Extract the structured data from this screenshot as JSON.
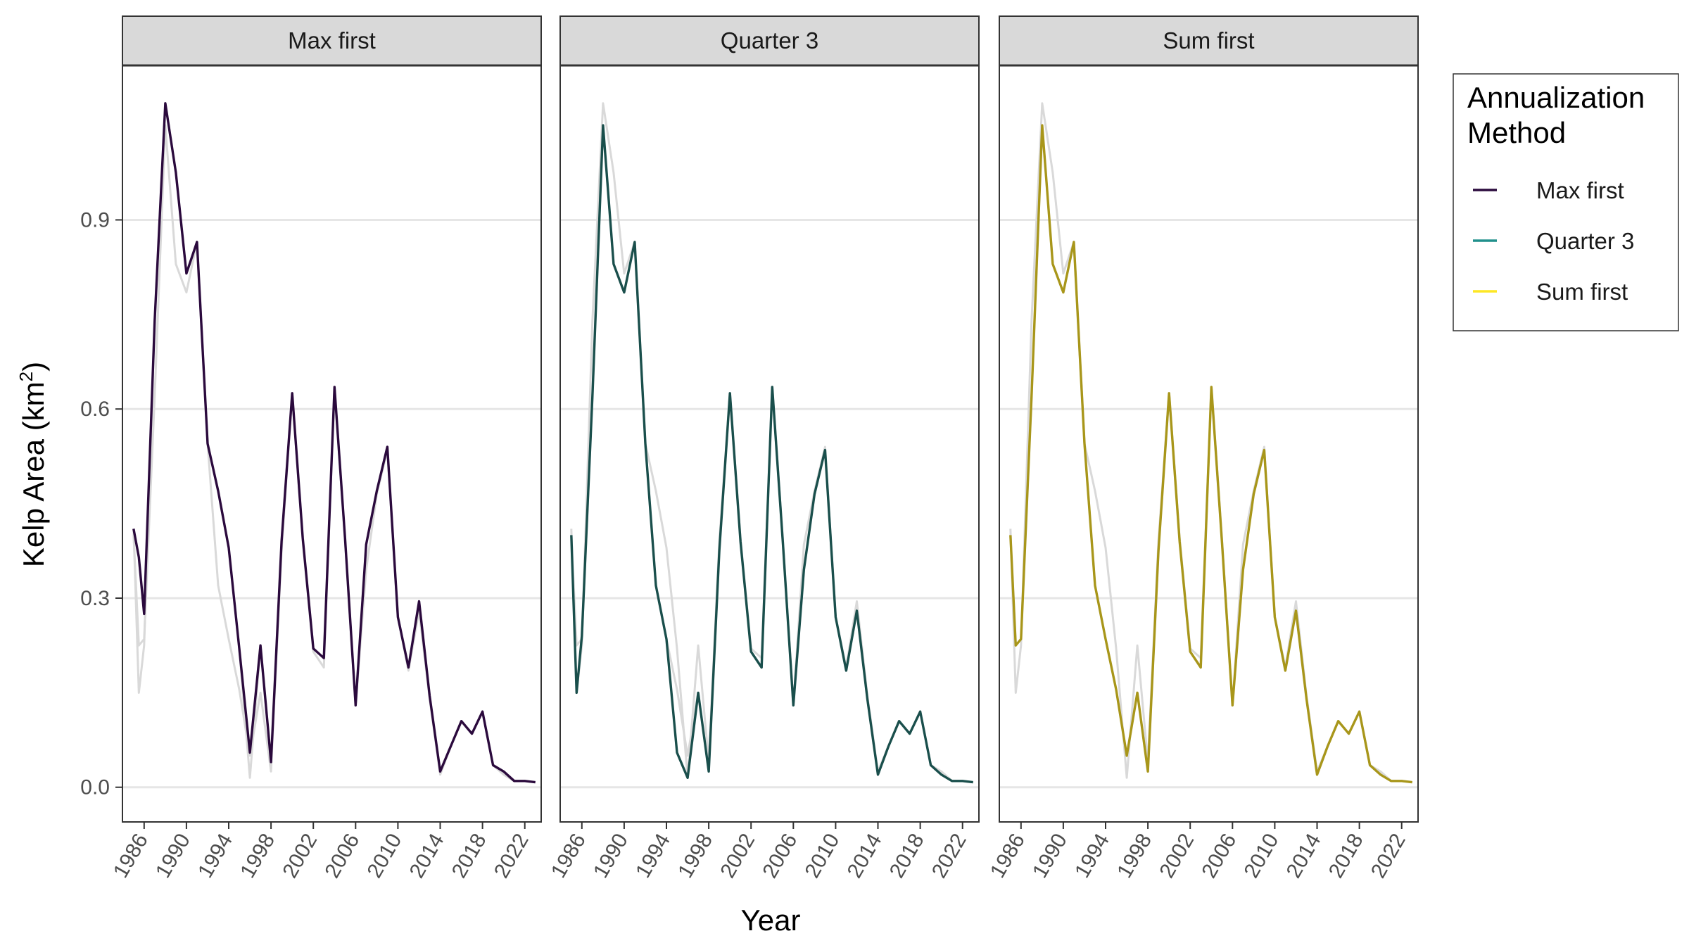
{
  "chart_data": {
    "type": "line",
    "ylabel": "Kelp Area (km",
    "ylabel_sup": "2",
    "ylabel_close": ")",
    "xlabel": "Year",
    "ylim": [
      -0.055,
      1.145
    ],
    "xlim": [
      1983.95,
      2023.55
    ],
    "y_ticks": [
      0.0,
      0.3,
      0.6,
      0.9
    ],
    "y_tick_labels": [
      "0.0",
      "0.3",
      "0.6",
      "0.9"
    ],
    "x_ticks": [
      1986,
      1990,
      1994,
      1998,
      2002,
      2006,
      2010,
      2014,
      2018,
      2022
    ],
    "x_tick_labels": [
      "1986",
      "1990",
      "1994",
      "1998",
      "2002",
      "2006",
      "2010",
      "2014",
      "2018",
      "2022"
    ],
    "grid": true,
    "legend": {
      "title_line1": "Annualization",
      "title_line2": "Method",
      "position": "right",
      "entries": [
        {
          "label": "Max first",
          "color": "#2b0a3d"
        },
        {
          "label": "Quarter 3",
          "color": "#21908c"
        },
        {
          "label": "Sum first",
          "color": "#fde725"
        }
      ]
    },
    "background_color": "#d9d9d9",
    "x": [
      1985,
      1985.5,
      1986,
      1987,
      1988,
      1989,
      1990,
      1991,
      1992,
      1993,
      1994,
      1995,
      1996,
      1997,
      1998,
      1999,
      2000,
      2001,
      2002,
      2003,
      2004,
      2005,
      2006,
      2007,
      2008,
      2009,
      2010,
      2011,
      2012,
      2013,
      2014,
      2015,
      2016,
      2017,
      2018,
      2019,
      2020,
      2021,
      2022,
      2023
    ],
    "series": [
      {
        "name": "Max first",
        "panel": "Max first",
        "color": "#2b0a3d",
        "values": [
          0.41,
          0.365,
          0.275,
          0.74,
          1.085,
          0.975,
          0.815,
          0.865,
          0.545,
          0.47,
          0.38,
          0.22,
          0.055,
          0.225,
          0.04,
          0.39,
          0.625,
          0.395,
          0.22,
          0.205,
          0.635,
          0.395,
          0.13,
          0.385,
          0.47,
          0.54,
          0.27,
          0.19,
          0.295,
          0.145,
          0.025,
          0.065,
          0.105,
          0.085,
          0.12,
          0.035,
          0.025,
          0.01,
          0.01,
          0.008
        ]
      },
      {
        "name": "Quarter 3",
        "panel": "Quarter 3",
        "color": "#1a4f4c",
        "values": [
          0.4,
          0.15,
          0.24,
          0.62,
          1.05,
          0.83,
          0.785,
          0.865,
          0.545,
          0.32,
          0.235,
          0.055,
          0.015,
          0.15,
          0.025,
          0.375,
          0.625,
          0.39,
          0.215,
          0.19,
          0.635,
          0.39,
          0.13,
          0.345,
          0.465,
          0.535,
          0.27,
          0.185,
          0.28,
          0.14,
          0.02,
          0.065,
          0.105,
          0.085,
          0.12,
          0.035,
          0.02,
          0.01,
          0.01,
          0.008
        ]
      },
      {
        "name": "Sum first",
        "panel": "Sum first",
        "color": "#a8961a",
        "values": [
          0.4,
          0.225,
          0.235,
          0.62,
          1.05,
          0.83,
          0.785,
          0.865,
          0.545,
          0.32,
          0.235,
          0.155,
          0.05,
          0.15,
          0.025,
          0.375,
          0.625,
          0.39,
          0.215,
          0.19,
          0.635,
          0.39,
          0.13,
          0.345,
          0.465,
          0.535,
          0.27,
          0.185,
          0.28,
          0.14,
          0.02,
          0.065,
          0.105,
          0.085,
          0.12,
          0.035,
          0.02,
          0.01,
          0.01,
          0.008
        ]
      }
    ],
    "background_series": [
      {
        "values": [
          0.41,
          0.15,
          0.225,
          0.74,
          1.085,
          0.975,
          0.815,
          0.865,
          0.545,
          0.47,
          0.38,
          0.22,
          0.015,
          0.225,
          0.04,
          0.39,
          0.625,
          0.395,
          0.22,
          0.205,
          0.635,
          0.395,
          0.13,
          0.385,
          0.47,
          0.54,
          0.27,
          0.19,
          0.295,
          0.145,
          0.025,
          0.065,
          0.105,
          0.085,
          0.12,
          0.035,
          0.025,
          0.01,
          0.01,
          0.008
        ]
      },
      {
        "values": [
          0.4,
          0.225,
          0.235,
          0.62,
          1.05,
          0.83,
          0.785,
          0.865,
          0.545,
          0.32,
          0.235,
          0.155,
          0.05,
          0.15,
          0.025,
          0.375,
          0.625,
          0.39,
          0.215,
          0.19,
          0.635,
          0.39,
          0.13,
          0.345,
          0.465,
          0.535,
          0.27,
          0.185,
          0.28,
          0.14,
          0.02,
          0.065,
          0.105,
          0.085,
          0.12,
          0.035,
          0.02,
          0.01,
          0.01,
          0.008
        ]
      }
    ]
  }
}
